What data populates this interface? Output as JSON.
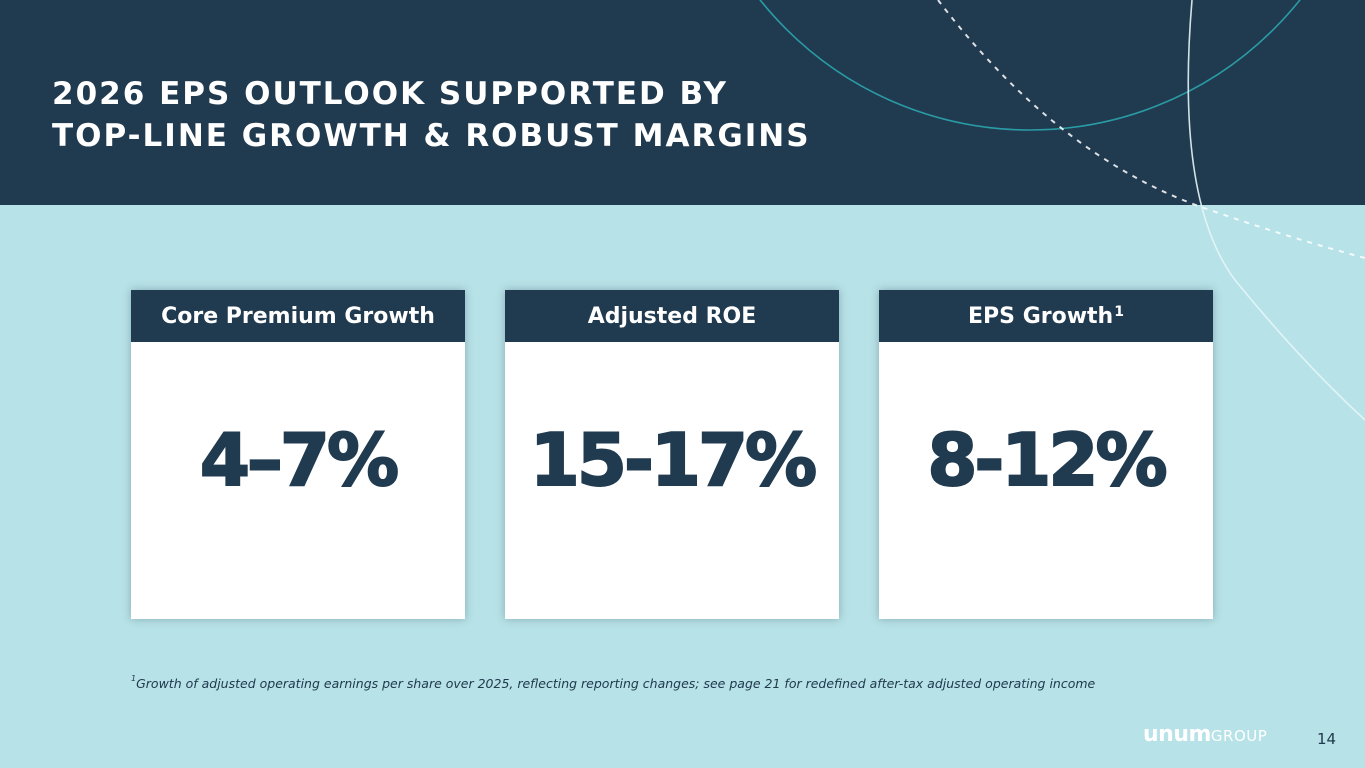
{
  "slide": {
    "title_lines": [
      "2026 EPS OUTLOOK SUPPORTED BY",
      "TOP-LINE GROWTH & ROBUST MARGINS"
    ],
    "cards": [
      {
        "label": "Core Premium Growth",
        "superscript": "",
        "value": "4–7%"
      },
      {
        "label": "Adjusted ROE",
        "superscript": "",
        "value": "15-17%"
      },
      {
        "label": "EPS Growth",
        "superscript": "1",
        "value": "8-12%"
      }
    ],
    "footnote": {
      "marker": "1",
      "text": "Growth of adjusted operating earnings per share over 2025, reflecting reporting changes; see page 21 for redefined after-tax adjusted operating income"
    },
    "logo": {
      "mark": "unum",
      "group": "GROUP"
    },
    "page_number": "14"
  },
  "colors": {
    "header_bg": "#203a4f",
    "body_bg": "#b7e2e7",
    "card_bg": "#ffffff",
    "accent_teal": "#2a9aa5"
  }
}
